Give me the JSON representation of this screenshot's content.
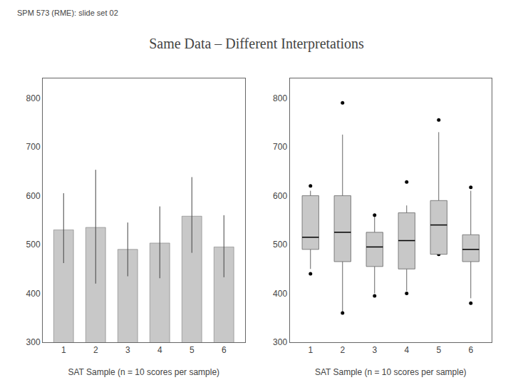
{
  "chart_data": [
    {
      "type": "bar",
      "title": "Same Data – Different Interpretations",
      "subtitle": "SPM 573 (RME): slide set 02",
      "xlabel": "SAT Sample (n = 10 scores per sample)",
      "categories": [
        1,
        2,
        3,
        4,
        5,
        6
      ],
      "values": [
        530,
        535,
        490,
        503,
        558,
        495
      ],
      "error_upper": [
        75,
        118,
        55,
        75,
        80,
        65
      ],
      "error_lower": [
        68,
        115,
        55,
        72,
        75,
        62
      ],
      "color": "#c8c8c8",
      "ylim": [
        300,
        840
      ],
      "yticks": [
        300,
        400,
        500,
        600,
        700,
        800
      ],
      "grid": false
    },
    {
      "type": "box",
      "xlabel": "SAT Sample (n = 10 scores per sample)",
      "categories": [
        1,
        2,
        3,
        4,
        5,
        6
      ],
      "boxes": [
        {
          "min": 450,
          "q1": 490,
          "median": 515,
          "q3": 600,
          "max": 610,
          "outliers_low": [
            440
          ],
          "outliers_high": [
            620
          ]
        },
        {
          "min": 360,
          "q1": 465,
          "median": 525,
          "q3": 600,
          "max": 725,
          "outliers_low": [
            360
          ],
          "outliers_high": [
            790
          ]
        },
        {
          "min": 400,
          "q1": 455,
          "median": 495,
          "q3": 525,
          "max": 560,
          "outliers_low": [
            395
          ],
          "outliers_high": [
            560
          ]
        },
        {
          "min": 405,
          "q1": 450,
          "median": 508,
          "q3": 565,
          "max": 580,
          "outliers_low": [
            400
          ],
          "outliers_high": [
            628
          ]
        },
        {
          "min": 490,
          "q1": 480,
          "median": 540,
          "q3": 590,
          "max": 730,
          "outliers_low": [
            480
          ],
          "outliers_high": [
            755
          ]
        },
        {
          "min": 390,
          "q1": 465,
          "median": 490,
          "q3": 520,
          "max": 610,
          "outliers_low": [
            380
          ],
          "outliers_high": [
            617
          ]
        }
      ],
      "color": "#c8c8c8",
      "ylim": [
        300,
        840
      ],
      "yticks": [
        300,
        400,
        500,
        600,
        700,
        800
      ],
      "grid": false
    }
  ]
}
